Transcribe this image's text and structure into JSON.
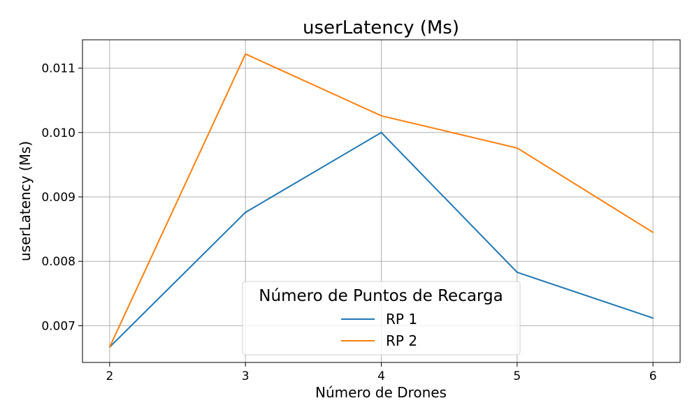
{
  "chart_data": {
    "type": "line",
    "title": "userLatency (Ms)",
    "xlabel": "Número de Drones",
    "ylabel": "userLatency (Ms)",
    "x": [
      2,
      3,
      4,
      5,
      6
    ],
    "x_tick_labels": [
      "2",
      "3",
      "4",
      "5",
      "6"
    ],
    "y_ticks": [
      0.007,
      0.008,
      0.009,
      0.01,
      0.011
    ],
    "y_tick_labels": [
      "0.007",
      "0.008",
      "0.009",
      "0.010",
      "0.011"
    ],
    "xlim": [
      1.8,
      6.2
    ],
    "ylim": [
      0.00643,
      0.01144
    ],
    "grid": true,
    "legend": {
      "title": "Número de Puntos de Recarga",
      "placement": "lower-center"
    },
    "series": [
      {
        "name": "RP 1",
        "color": "#1f77b4",
        "values": [
          0.00667,
          0.00876,
          0.01,
          0.00783,
          0.00712
        ]
      },
      {
        "name": "RP 2",
        "color": "#ff7f0e",
        "values": [
          0.00667,
          0.01122,
          0.01026,
          0.00976,
          0.00845
        ]
      }
    ]
  }
}
